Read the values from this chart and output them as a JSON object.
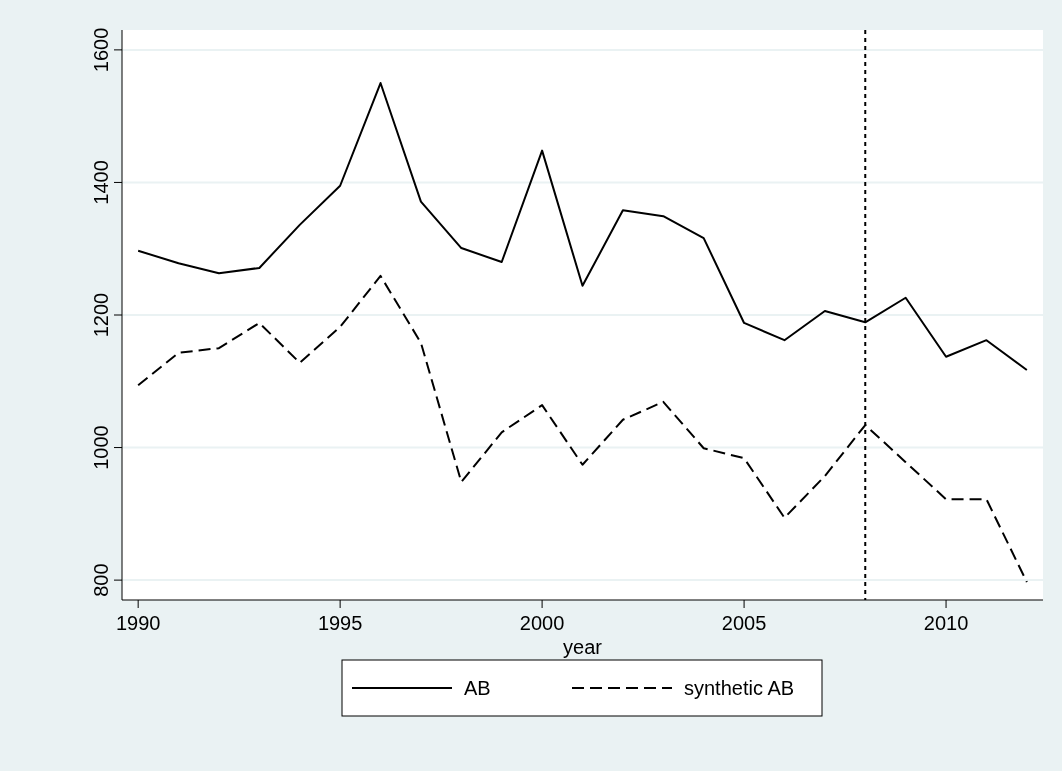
{
  "chart_data": {
    "type": "line",
    "xlabel": "year",
    "x": [
      1990,
      1991,
      1992,
      1993,
      1994,
      1995,
      1996,
      1997,
      1998,
      1999,
      2000,
      2001,
      2002,
      2003,
      2004,
      2005,
      2006,
      2007,
      2008,
      2009,
      2010,
      2011,
      2012
    ],
    "series": [
      {
        "name": "AB",
        "color": "#000000",
        "line_style": "solid",
        "values": [
          1297,
          1278,
          1263,
          1271,
          1336,
          1395,
          1550,
          1371,
          1301,
          1280,
          1448,
          1244,
          1358,
          1349,
          1316,
          1188,
          1162,
          1206,
          1189,
          1226,
          1137,
          1162,
          1117
        ]
      },
      {
        "name": "synthetic AB",
        "color": "#000000",
        "line_style": "dashed",
        "values": [
          1094,
          1143,
          1150,
          1188,
          1128,
          1182,
          1259,
          1158,
          948,
          1023,
          1064,
          974,
          1042,
          1069,
          999,
          984,
          894,
          957,
          1034,
          978,
          922,
          922,
          797
        ]
      }
    ],
    "xlim": [
      1989.6,
      2012.4
    ],
    "xticks": [
      1990,
      1995,
      2000,
      2005,
      2010
    ],
    "ylim": [
      770,
      1630
    ],
    "yticks": [
      800,
      1000,
      1200,
      1400,
      1600
    ],
    "grid": "y",
    "legend": "bottom",
    "marker": "none",
    "ref_lines": [
      {
        "axis": "x",
        "value": 2008,
        "color": "#000000",
        "line_style": "dotted"
      }
    ]
  }
}
